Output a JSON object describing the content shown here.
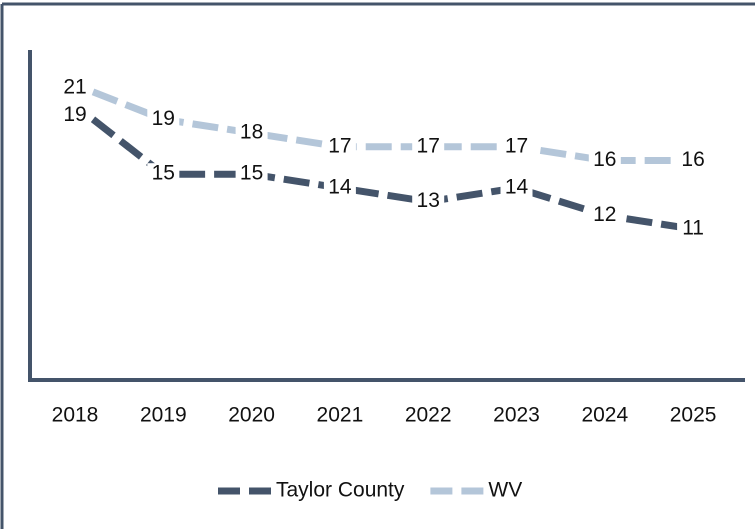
{
  "chart_data": {
    "type": "line",
    "categories": [
      "2018",
      "2019",
      "2020",
      "2021",
      "2022",
      "2023",
      "2024",
      "2025"
    ],
    "series": [
      {
        "name": "Taylor County",
        "color": "#44546a",
        "values": [
          19,
          15,
          15,
          14,
          13,
          14,
          12,
          11
        ]
      },
      {
        "name": "WV",
        "color": "#b4c6d9",
        "values": [
          21,
          19,
          18,
          17,
          17,
          17,
          16,
          16
        ]
      }
    ],
    "ylim": [
      0,
      25
    ],
    "legend": "bottom"
  }
}
